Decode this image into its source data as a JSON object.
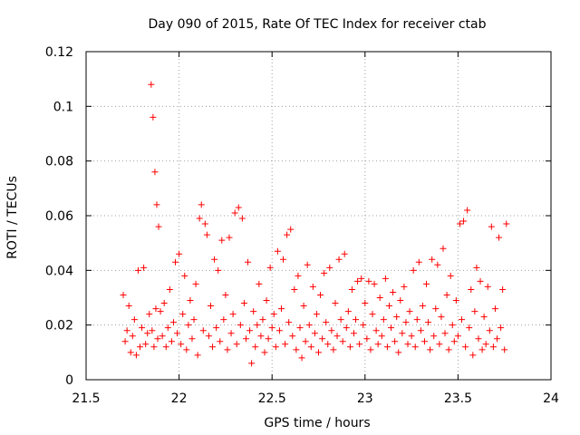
{
  "chart_data": {
    "type": "scatter",
    "title": "Day 090 of 2015, Rate Of TEC Index for receiver ctab",
    "xlabel": "GPS time / hours",
    "ylabel": "ROTI / TECUs",
    "xlim": [
      21.5,
      24
    ],
    "ylim": [
      0,
      0.12
    ],
    "x_ticks": [
      21.5,
      22,
      22.5,
      23,
      23.5,
      24
    ],
    "x_tick_labels": [
      "21.5",
      "22",
      "22.5",
      "23",
      "23.5",
      "24"
    ],
    "y_ticks": [
      0,
      0.02,
      0.04,
      0.06,
      0.08,
      0.1,
      0.12
    ],
    "y_tick_labels": [
      "0",
      "0.02",
      "0.04",
      "0.06",
      "0.08",
      "0.1",
      "0.12"
    ],
    "grid": true,
    "marker": "+",
    "marker_color": "#ff0000",
    "series": [
      {
        "name": "ROTI",
        "points": [
          [
            21.7,
            0.031
          ],
          [
            21.71,
            0.014
          ],
          [
            21.72,
            0.018
          ],
          [
            21.73,
            0.027
          ],
          [
            21.74,
            0.01
          ],
          [
            21.75,
            0.016
          ],
          [
            21.76,
            0.022
          ],
          [
            21.77,
            0.009
          ],
          [
            21.78,
            0.04
          ],
          [
            21.79,
            0.012
          ],
          [
            21.8,
            0.019
          ],
          [
            21.81,
            0.041
          ],
          [
            21.82,
            0.013
          ],
          [
            21.83,
            0.017
          ],
          [
            21.84,
            0.024
          ],
          [
            21.85,
            0.108
          ],
          [
            21.855,
            0.018
          ],
          [
            21.86,
            0.096
          ],
          [
            21.865,
            0.012
          ],
          [
            21.87,
            0.076
          ],
          [
            21.875,
            0.026
          ],
          [
            21.88,
            0.064
          ],
          [
            21.885,
            0.015
          ],
          [
            21.89,
            0.056
          ],
          [
            21.9,
            0.025
          ],
          [
            21.91,
            0.016
          ],
          [
            21.92,
            0.028
          ],
          [
            21.93,
            0.012
          ],
          [
            21.94,
            0.019
          ],
          [
            21.95,
            0.033
          ],
          [
            21.96,
            0.014
          ],
          [
            21.97,
            0.021
          ],
          [
            21.98,
            0.043
          ],
          [
            21.99,
            0.017
          ],
          [
            22.0,
            0.046
          ],
          [
            22.01,
            0.013
          ],
          [
            22.02,
            0.024
          ],
          [
            22.03,
            0.038
          ],
          [
            22.04,
            0.011
          ],
          [
            22.05,
            0.02
          ],
          [
            22.06,
            0.029
          ],
          [
            22.07,
            0.015
          ],
          [
            22.08,
            0.022
          ],
          [
            22.09,
            0.035
          ],
          [
            22.1,
            0.009
          ],
          [
            22.11,
            0.059
          ],
          [
            22.12,
            0.064
          ],
          [
            22.13,
            0.018
          ],
          [
            22.14,
            0.057
          ],
          [
            22.15,
            0.053
          ],
          [
            22.16,
            0.016
          ],
          [
            22.17,
            0.027
          ],
          [
            22.18,
            0.012
          ],
          [
            22.19,
            0.044
          ],
          [
            22.2,
            0.019
          ],
          [
            22.21,
            0.04
          ],
          [
            22.22,
            0.014
          ],
          [
            22.23,
            0.051
          ],
          [
            22.24,
            0.022
          ],
          [
            22.25,
            0.031
          ],
          [
            22.26,
            0.011
          ],
          [
            22.27,
            0.052
          ],
          [
            22.28,
            0.017
          ],
          [
            22.29,
            0.024
          ],
          [
            22.3,
            0.061
          ],
          [
            22.31,
            0.013
          ],
          [
            22.32,
            0.063
          ],
          [
            22.33,
            0.02
          ],
          [
            22.34,
            0.059
          ],
          [
            22.35,
            0.028
          ],
          [
            22.36,
            0.015
          ],
          [
            22.37,
            0.043
          ],
          [
            22.38,
            0.018
          ],
          [
            22.39,
            0.006
          ],
          [
            22.4,
            0.025
          ],
          [
            22.41,
            0.012
          ],
          [
            22.42,
            0.02
          ],
          [
            22.43,
            0.035
          ],
          [
            22.44,
            0.016
          ],
          [
            22.45,
            0.022
          ],
          [
            22.46,
            0.01
          ],
          [
            22.47,
            0.029
          ],
          [
            22.48,
            0.015
          ],
          [
            22.49,
            0.041
          ],
          [
            22.5,
            0.019
          ],
          [
            22.51,
            0.024
          ],
          [
            22.52,
            0.012
          ],
          [
            22.53,
            0.047
          ],
          [
            22.54,
            0.018
          ],
          [
            22.55,
            0.026
          ],
          [
            22.56,
            0.044
          ],
          [
            22.57,
            0.013
          ],
          [
            22.58,
            0.053
          ],
          [
            22.59,
            0.021
          ],
          [
            22.6,
            0.055
          ],
          [
            22.61,
            0.016
          ],
          [
            22.62,
            0.033
          ],
          [
            22.63,
            0.011
          ],
          [
            22.64,
            0.038
          ],
          [
            22.65,
            0.019
          ],
          [
            22.66,
            0.008
          ],
          [
            22.67,
            0.027
          ],
          [
            22.68,
            0.014
          ],
          [
            22.69,
            0.042
          ],
          [
            22.7,
            0.02
          ],
          [
            22.71,
            0.012
          ],
          [
            22.72,
            0.034
          ],
          [
            22.73,
            0.017
          ],
          [
            22.74,
            0.024
          ],
          [
            22.75,
            0.01
          ],
          [
            22.76,
            0.031
          ],
          [
            22.77,
            0.015
          ],
          [
            22.78,
            0.039
          ],
          [
            22.79,
            0.021
          ],
          [
            22.8,
            0.013
          ],
          [
            22.81,
            0.041
          ],
          [
            22.82,
            0.018
          ],
          [
            22.83,
            0.011
          ],
          [
            22.84,
            0.028
          ],
          [
            22.85,
            0.016
          ],
          [
            22.86,
            0.044
          ],
          [
            22.87,
            0.022
          ],
          [
            22.88,
            0.014
          ],
          [
            22.89,
            0.046
          ],
          [
            22.9,
            0.019
          ],
          [
            22.91,
            0.025
          ],
          [
            22.92,
            0.012
          ],
          [
            22.93,
            0.033
          ],
          [
            22.94,
            0.017
          ],
          [
            22.95,
            0.022
          ],
          [
            22.96,
            0.036
          ],
          [
            22.97,
            0.013
          ],
          [
            22.98,
            0.037
          ],
          [
            22.99,
            0.02
          ],
          [
            23.0,
            0.028
          ],
          [
            23.01,
            0.015
          ],
          [
            23.02,
            0.036
          ],
          [
            23.03,
            0.011
          ],
          [
            23.04,
            0.024
          ],
          [
            23.05,
            0.035
          ],
          [
            23.06,
            0.018
          ],
          [
            23.07,
            0.013
          ],
          [
            23.08,
            0.03
          ],
          [
            23.09,
            0.016
          ],
          [
            23.1,
            0.022
          ],
          [
            23.11,
            0.037
          ],
          [
            23.12,
            0.012
          ],
          [
            23.13,
            0.027
          ],
          [
            23.14,
            0.019
          ],
          [
            23.15,
            0.032
          ],
          [
            23.16,
            0.014
          ],
          [
            23.17,
            0.023
          ],
          [
            23.18,
            0.01
          ],
          [
            23.19,
            0.029
          ],
          [
            23.2,
            0.017
          ],
          [
            23.21,
            0.034
          ],
          [
            23.22,
            0.021
          ],
          [
            23.23,
            0.013
          ],
          [
            23.24,
            0.025
          ],
          [
            23.25,
            0.016
          ],
          [
            23.26,
            0.04
          ],
          [
            23.27,
            0.012
          ],
          [
            23.28,
            0.022
          ],
          [
            23.29,
            0.043
          ],
          [
            23.3,
            0.018
          ],
          [
            23.31,
            0.027
          ],
          [
            23.32,
            0.014
          ],
          [
            23.33,
            0.035
          ],
          [
            23.34,
            0.021
          ],
          [
            23.35,
            0.011
          ],
          [
            23.36,
            0.044
          ],
          [
            23.37,
            0.016
          ],
          [
            23.38,
            0.026
          ],
          [
            23.39,
            0.042
          ],
          [
            23.4,
            0.013
          ],
          [
            23.41,
            0.023
          ],
          [
            23.42,
            0.048
          ],
          [
            23.43,
            0.017
          ],
          [
            23.44,
            0.031
          ],
          [
            23.45,
            0.011
          ],
          [
            23.46,
            0.038
          ],
          [
            23.47,
            0.02
          ],
          [
            23.48,
            0.014
          ],
          [
            23.49,
            0.029
          ],
          [
            23.5,
            0.016
          ],
          [
            23.51,
            0.057
          ],
          [
            23.52,
            0.022
          ],
          [
            23.53,
            0.058
          ],
          [
            23.54,
            0.012
          ],
          [
            23.55,
            0.062
          ],
          [
            23.56,
            0.019
          ],
          [
            23.57,
            0.033
          ],
          [
            23.58,
            0.009
          ],
          [
            23.59,
            0.025
          ],
          [
            23.6,
            0.041
          ],
          [
            23.61,
            0.015
          ],
          [
            23.62,
            0.036
          ],
          [
            23.63,
            0.011
          ],
          [
            23.64,
            0.023
          ],
          [
            23.65,
            0.013
          ],
          [
            23.66,
            0.034
          ],
          [
            23.67,
            0.018
          ],
          [
            23.68,
            0.056
          ],
          [
            23.69,
            0.012
          ],
          [
            23.7,
            0.026
          ],
          [
            23.71,
            0.015
          ],
          [
            23.72,
            0.052
          ],
          [
            23.73,
            0.019
          ],
          [
            23.74,
            0.033
          ],
          [
            23.75,
            0.011
          ],
          [
            23.76,
            0.057
          ]
        ]
      }
    ]
  }
}
